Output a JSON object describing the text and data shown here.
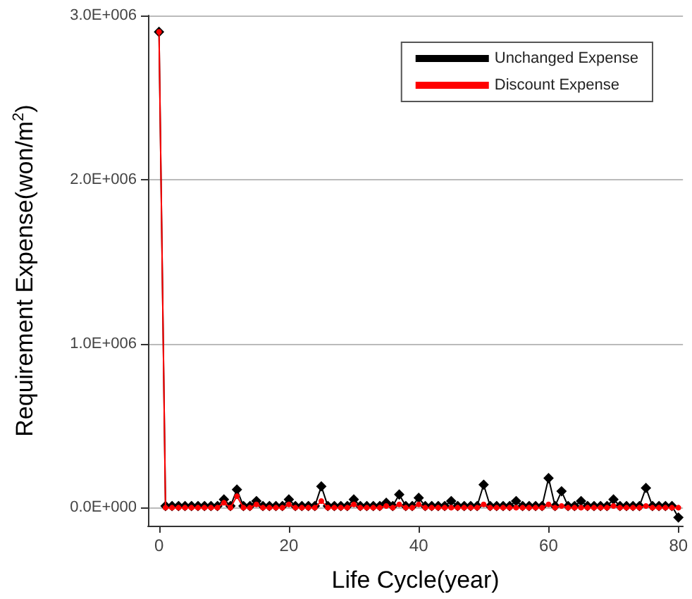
{
  "chart_data": {
    "type": "line",
    "xlabel": "Life Cycle(year)",
    "ylabel": "Requirement Expense(won/m$^{2}$)",
    "x": [
      0,
      1,
      2,
      3,
      4,
      5,
      6,
      7,
      8,
      9,
      10,
      11,
      12,
      13,
      14,
      15,
      16,
      17,
      18,
      19,
      20,
      21,
      22,
      23,
      24,
      25,
      26,
      27,
      28,
      29,
      30,
      31,
      32,
      33,
      34,
      35,
      36,
      37,
      38,
      39,
      40,
      41,
      42,
      43,
      44,
      45,
      46,
      47,
      48,
      49,
      50,
      51,
      52,
      53,
      54,
      55,
      56,
      57,
      58,
      59,
      60,
      61,
      62,
      63,
      64,
      65,
      66,
      67,
      68,
      69,
      70,
      71,
      72,
      73,
      74,
      75,
      76,
      77,
      78,
      79,
      80
    ],
    "xlim": [
      -1.7,
      80.7
    ],
    "xticks": [
      0,
      20,
      40,
      60,
      80
    ],
    "ylim": [
      -110000,
      3000000
    ],
    "yticks": [
      {
        "value": 0,
        "label": "0.0E+000"
      },
      {
        "value": 1000000,
        "label": "1.0E+006"
      },
      {
        "value": 2000000,
        "label": "2.0E+006"
      },
      {
        "value": 3000000,
        "label": "3.0E+006"
      }
    ],
    "grid": "y",
    "legend": "top right",
    "series": [
      {
        "name": "Unchanged Expense",
        "color": "#000000",
        "marker": "diamond",
        "values": [
          2900000,
          10000,
          10000,
          10000,
          10000,
          10000,
          10000,
          10000,
          10000,
          10000,
          50000,
          10000,
          110000,
          10000,
          10000,
          40000,
          10000,
          10000,
          10000,
          10000,
          50000,
          10000,
          10000,
          10000,
          10000,
          130000,
          10000,
          10000,
          10000,
          10000,
          50000,
          10000,
          10000,
          10000,
          10000,
          30000,
          10000,
          80000,
          10000,
          10000,
          60000,
          10000,
          10000,
          10000,
          10000,
          40000,
          10000,
          10000,
          10000,
          10000,
          140000,
          10000,
          10000,
          10000,
          10000,
          40000,
          10000,
          10000,
          10000,
          10000,
          180000,
          10000,
          100000,
          10000,
          10000,
          40000,
          10000,
          10000,
          10000,
          10000,
          50000,
          10000,
          10000,
          10000,
          10000,
          120000,
          10000,
          10000,
          10000,
          10000,
          -60000
        ]
      },
      {
        "name": "Discount Expense",
        "color": "#ff0000",
        "marker": "circle",
        "values": [
          2900000,
          0,
          0,
          0,
          0,
          0,
          0,
          0,
          0,
          0,
          30000,
          0,
          70000,
          0,
          0,
          20000,
          0,
          0,
          0,
          0,
          20000,
          0,
          0,
          0,
          0,
          40000,
          0,
          0,
          0,
          0,
          20000,
          0,
          0,
          0,
          0,
          10000,
          0,
          20000,
          0,
          0,
          20000,
          0,
          0,
          0,
          0,
          0,
          0,
          0,
          0,
          0,
          20000,
          0,
          0,
          0,
          0,
          0,
          0,
          0,
          0,
          0,
          20000,
          0,
          10000,
          0,
          0,
          0,
          0,
          0,
          0,
          0,
          10000,
          0,
          0,
          0,
          0,
          10000,
          0,
          0,
          0,
          0,
          0
        ]
      }
    ]
  }
}
